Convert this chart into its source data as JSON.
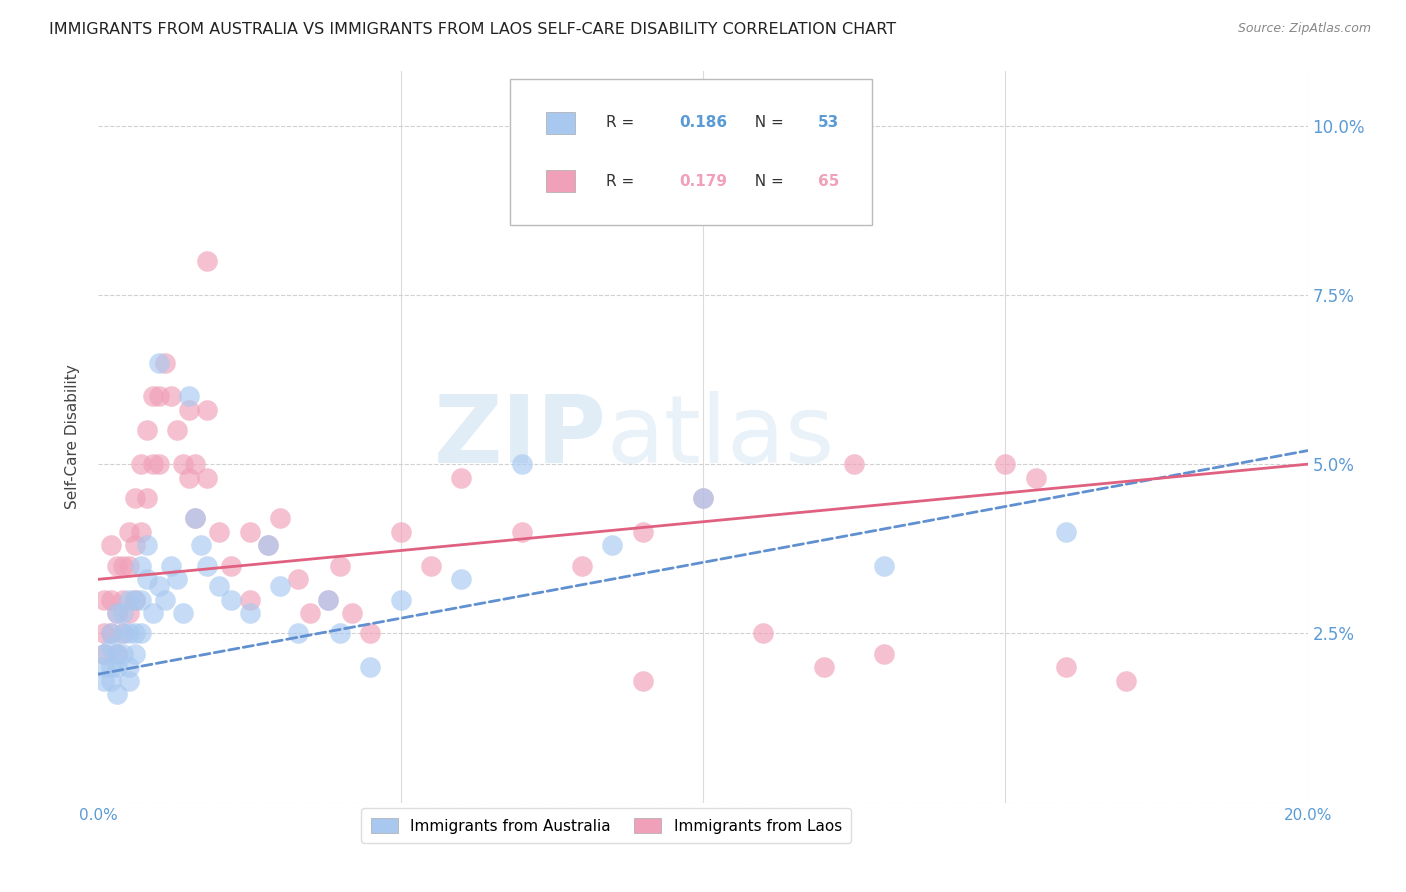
{
  "title": "IMMIGRANTS FROM AUSTRALIA VS IMMIGRANTS FROM LAOS SELF-CARE DISABILITY CORRELATION CHART",
  "source": "Source: ZipAtlas.com",
  "ylabel": "Self-Care Disability",
  "yticks": [
    0.0,
    0.025,
    0.05,
    0.075,
    0.1
  ],
  "ytick_labels": [
    "",
    "2.5%",
    "5.0%",
    "7.5%",
    "10.0%"
  ],
  "xlim": [
    0.0,
    0.2
  ],
  "ylim": [
    0.0,
    0.108
  ],
  "australia_color": "#a8c8f0",
  "laos_color": "#f0a0b8",
  "australia_line_color": "#6090d0",
  "laos_line_color": "#e06080",
  "australia_R": 0.186,
  "australia_N": 53,
  "laos_R": 0.179,
  "laos_N": 65,
  "aus_trend_start": 0.019,
  "aus_trend_end": 0.052,
  "laos_trend_start": 0.033,
  "laos_trend_end": 0.05,
  "australia_x": [
    0.001,
    0.001,
    0.001,
    0.002,
    0.002,
    0.002,
    0.002,
    0.003,
    0.003,
    0.003,
    0.003,
    0.004,
    0.004,
    0.004,
    0.005,
    0.005,
    0.005,
    0.005,
    0.006,
    0.006,
    0.006,
    0.007,
    0.007,
    0.007,
    0.008,
    0.008,
    0.009,
    0.01,
    0.01,
    0.011,
    0.012,
    0.013,
    0.014,
    0.015,
    0.016,
    0.017,
    0.018,
    0.02,
    0.022,
    0.025,
    0.028,
    0.03,
    0.033,
    0.038,
    0.04,
    0.045,
    0.05,
    0.06,
    0.07,
    0.085,
    0.1,
    0.13,
    0.16
  ],
  "australia_y": [
    0.022,
    0.02,
    0.018,
    0.025,
    0.02,
    0.023,
    0.018,
    0.028,
    0.022,
    0.02,
    0.016,
    0.025,
    0.028,
    0.022,
    0.03,
    0.025,
    0.02,
    0.018,
    0.03,
    0.025,
    0.022,
    0.035,
    0.03,
    0.025,
    0.038,
    0.033,
    0.028,
    0.065,
    0.032,
    0.03,
    0.035,
    0.033,
    0.028,
    0.06,
    0.042,
    0.038,
    0.035,
    0.032,
    0.03,
    0.028,
    0.038,
    0.032,
    0.025,
    0.03,
    0.025,
    0.02,
    0.03,
    0.033,
    0.05,
    0.038,
    0.045,
    0.035,
    0.04
  ],
  "laos_x": [
    0.001,
    0.001,
    0.001,
    0.002,
    0.002,
    0.002,
    0.003,
    0.003,
    0.003,
    0.004,
    0.004,
    0.004,
    0.005,
    0.005,
    0.005,
    0.006,
    0.006,
    0.006,
    0.007,
    0.007,
    0.008,
    0.008,
    0.009,
    0.009,
    0.01,
    0.01,
    0.011,
    0.012,
    0.013,
    0.014,
    0.015,
    0.015,
    0.016,
    0.016,
    0.018,
    0.018,
    0.02,
    0.022,
    0.025,
    0.025,
    0.028,
    0.03,
    0.033,
    0.035,
    0.038,
    0.04,
    0.042,
    0.045,
    0.05,
    0.055,
    0.06,
    0.07,
    0.08,
    0.09,
    0.1,
    0.11,
    0.12,
    0.125,
    0.13,
    0.15,
    0.155,
    0.16,
    0.17,
    0.018,
    0.09
  ],
  "laos_y": [
    0.03,
    0.025,
    0.022,
    0.038,
    0.03,
    0.025,
    0.035,
    0.028,
    0.022,
    0.035,
    0.03,
    0.025,
    0.04,
    0.035,
    0.028,
    0.045,
    0.038,
    0.03,
    0.05,
    0.04,
    0.055,
    0.045,
    0.06,
    0.05,
    0.06,
    0.05,
    0.065,
    0.06,
    0.055,
    0.05,
    0.058,
    0.048,
    0.05,
    0.042,
    0.058,
    0.048,
    0.04,
    0.035,
    0.04,
    0.03,
    0.038,
    0.042,
    0.033,
    0.028,
    0.03,
    0.035,
    0.028,
    0.025,
    0.04,
    0.035,
    0.048,
    0.04,
    0.035,
    0.04,
    0.045,
    0.025,
    0.02,
    0.05,
    0.022,
    0.05,
    0.048,
    0.02,
    0.018,
    0.08,
    0.018
  ],
  "watermark_zip": "ZIP",
  "watermark_atlas": "atlas",
  "background_color": "#ffffff",
  "grid_color": "#cccccc",
  "tick_label_color": "#5b9bd5",
  "title_fontsize": 11.5,
  "axis_label_fontsize": 11
}
